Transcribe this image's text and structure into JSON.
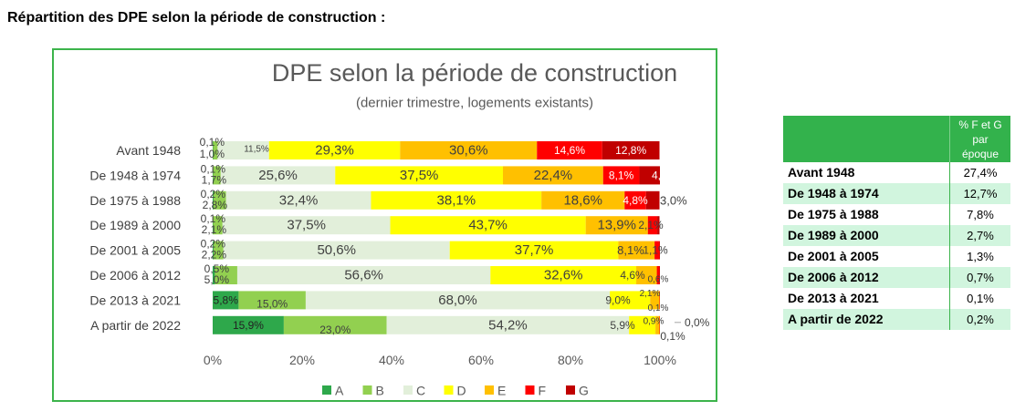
{
  "heading": "Répartition des DPE selon la période de construction :",
  "colors": {
    "chart_border": "#3cb44b",
    "table_header": "#33b24c",
    "table_row_alt": "#d1f5de",
    "table_divider": "#3cb44b",
    "label_text": "#404040",
    "axis_text": "#595959"
  },
  "chart_data": {
    "type": "bar",
    "orientation": "horizontal",
    "stacked": true,
    "title": "DPE selon la période de construction",
    "subtitle": "(dernier trimestre, logements existants)",
    "categories": [
      "Avant 1948",
      "De 1948 à 1974",
      "De 1975 à 1988",
      "De 1989 à 2000",
      "De 2001 à 2005",
      "De 2006 à 2012",
      "De 2013 à 2021",
      "A partir de 2022"
    ],
    "series": [
      {
        "name": "A",
        "color": "#2ea84b",
        "values": [
          0.1,
          0.1,
          0.2,
          0.1,
          0.2,
          0.5,
          5.8,
          15.9
        ]
      },
      {
        "name": "B",
        "color": "#92d050",
        "values": [
          1.0,
          1.7,
          2.8,
          2.1,
          2.2,
          5.0,
          15.0,
          23.0
        ]
      },
      {
        "name": "C",
        "color": "#e2efda",
        "values": [
          11.5,
          25.6,
          32.4,
          37.5,
          50.6,
          56.6,
          68.0,
          54.2
        ]
      },
      {
        "name": "D",
        "color": "#ffff00",
        "values": [
          29.3,
          37.5,
          38.1,
          43.7,
          37.7,
          32.6,
          9.0,
          5.9
        ]
      },
      {
        "name": "E",
        "color": "#ffc000",
        "values": [
          30.6,
          22.4,
          18.6,
          13.9,
          8.1,
          4.6,
          2.1,
          0.9
        ]
      },
      {
        "name": "F",
        "color": "#ff0000",
        "values": [
          14.6,
          8.1,
          4.8,
          2.1,
          1.1,
          0.6,
          0.1,
          0.1
        ]
      },
      {
        "name": "G",
        "color": "#c00000",
        "values": [
          12.8,
          4.6,
          3.0,
          0.5,
          0.1,
          0.1,
          0.0,
          0.0
        ]
      }
    ],
    "xlim": [
      0,
      100
    ],
    "xticks": [
      0,
      20,
      40,
      60,
      80,
      100
    ],
    "grid": false,
    "legend": "bottom"
  },
  "table": {
    "header_lines": [
      "% F et G",
      "par",
      "époque"
    ],
    "rows": [
      {
        "label": "Avant 1948",
        "value": "27,4%"
      },
      {
        "label": "De 1948 à 1974",
        "value": "12,7%"
      },
      {
        "label": "De 1975 à 1988",
        "value": "7,8%"
      },
      {
        "label": "De 1989 à 2000",
        "value": "2,7%"
      },
      {
        "label": "De 2001 à 2005",
        "value": "1,3%"
      },
      {
        "label": "De 2006 à 2012",
        "value": "0,7%"
      },
      {
        "label": "De 2013 à 2021",
        "value": "0,1%"
      },
      {
        "label": "A partir de 2022",
        "value": "0,2%"
      }
    ]
  }
}
